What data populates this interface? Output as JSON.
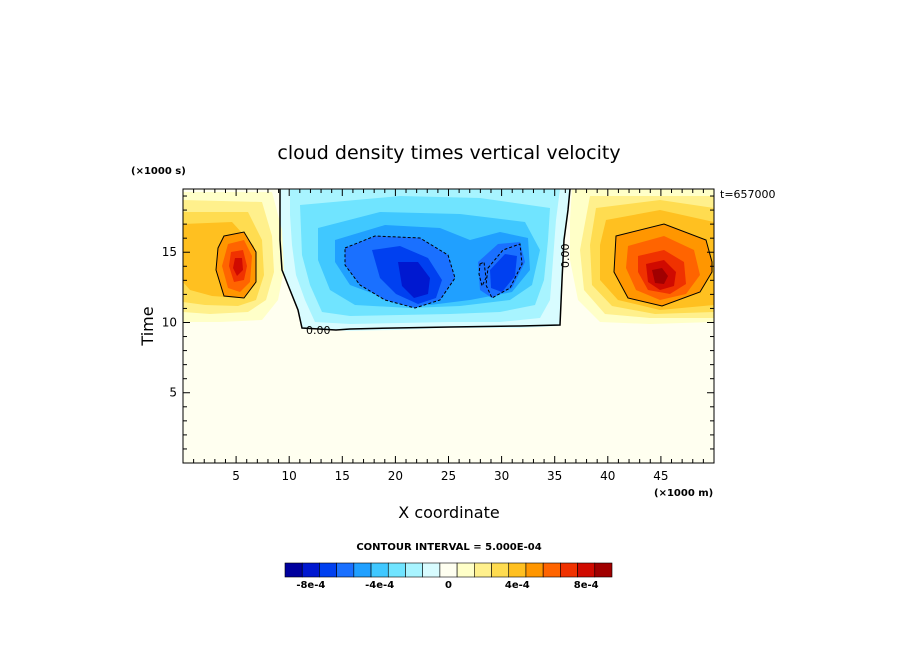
{
  "chart_data": {
    "type": "heatmap",
    "title": "cloud density times vertical velocity",
    "xlabel": "X coordinate",
    "ylabel": "Time",
    "x_unit": "(×1000 m)",
    "y_unit": "(×1000 s)",
    "time_stamp": "t=657000",
    "xlim": [
      0,
      50
    ],
    "ylim": [
      0,
      19.5
    ],
    "x_ticks": [
      5,
      10,
      15,
      20,
      25,
      30,
      35,
      40,
      45
    ],
    "y_ticks": [
      5,
      10,
      15
    ],
    "x_tick_labels": [
      "5",
      "10",
      "15",
      "20",
      "25",
      "30",
      "35",
      "40",
      "45"
    ],
    "y_tick_labels": [
      "5",
      "10",
      "15"
    ],
    "contour_interval_text": "CONTOUR INTERVAL = 5.000E-04",
    "contour_labels": [
      "0.00",
      "0.00"
    ],
    "colorbar": {
      "levels": [
        -0.0009,
        -0.0008,
        -0.0007,
        -0.0006,
        -0.0005,
        -0.0004,
        -0.0003,
        -0.0002,
        -0.0001,
        0,
        0.0001,
        0.0002,
        0.0003,
        0.0004,
        0.0005,
        0.0006,
        0.0007,
        0.0008,
        0.0009
      ],
      "colors": [
        "#00009e",
        "#0018d0",
        "#0040f0",
        "#1a70ff",
        "#20a0ff",
        "#40c8ff",
        "#70e4ff",
        "#a8f4ff",
        "#d8fcff",
        "#fffff0",
        "#ffffc8",
        "#fff08c",
        "#ffdc50",
        "#ffc020",
        "#ff9600",
        "#ff6400",
        "#f03200",
        "#d00a00",
        "#a00000"
      ],
      "tick_labels": [
        "-8e-4",
        "-4e-4",
        "0",
        "4e-4",
        "8e-4"
      ],
      "tick_values": [
        -0.0008,
        -0.0004,
        0,
        0.0004,
        0.0008
      ]
    },
    "field": {
      "description_values_in_data_units": "positive cells left and right, negative cloud region in the middle after t≈10",
      "regions": [
        {
          "sign": "positive",
          "x_center": 5,
          "y_center": 14.5,
          "peak": 0.0008
        },
        {
          "sign": "positive",
          "x_center": 44,
          "y_center": 13.8,
          "peak": 0.0008
        },
        {
          "sign": "negative",
          "x_center": 21.5,
          "y_center": 13.2,
          "peak": -0.0008
        },
        {
          "sign": "negative",
          "x_center": 30,
          "y_center": 13.8,
          "peak": -0.0007
        }
      ]
    }
  }
}
